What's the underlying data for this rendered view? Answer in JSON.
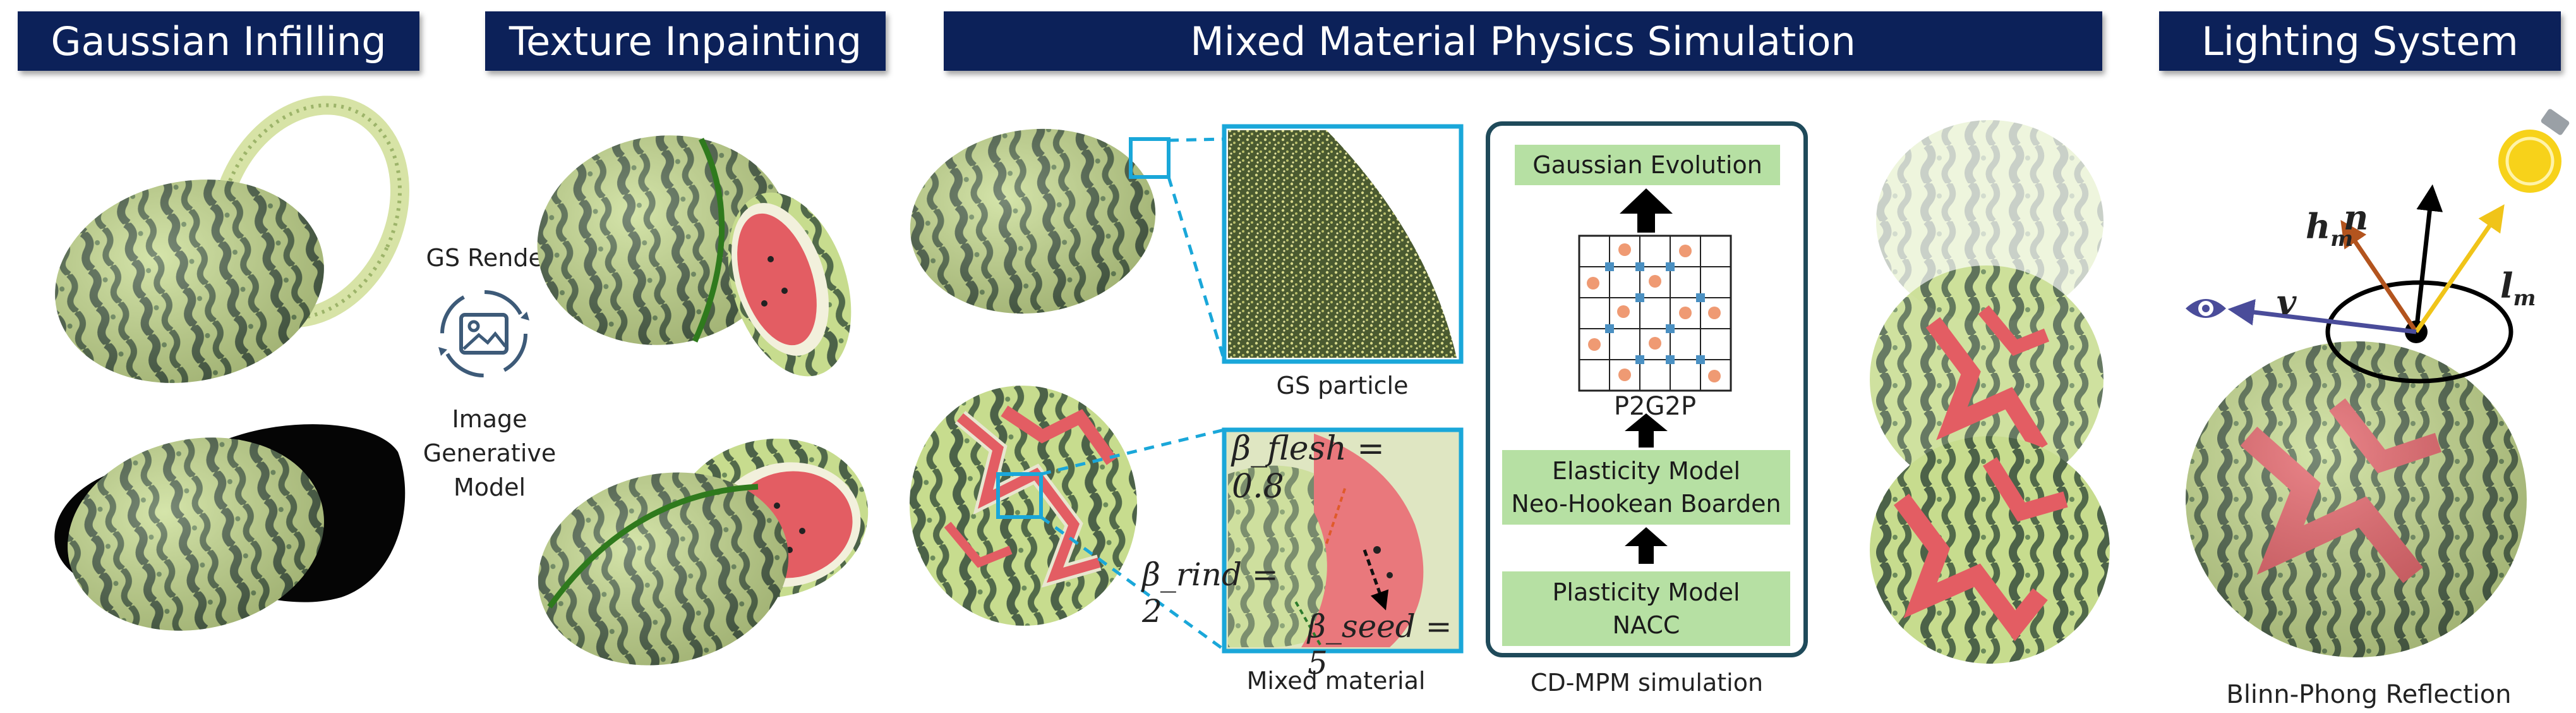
{
  "headers": {
    "gaussian_infilling": "Gaussian Infilling",
    "texture_inpainting": "Texture Inpainting",
    "physics_simulation": "Mixed Material Physics Simulation",
    "lighting_system": "Lighting System"
  },
  "labels": {
    "gs_render": "GS Render",
    "image_gen_1": "Image",
    "image_gen_2": "Generative",
    "image_gen_3": "Model",
    "gs_particle": "GS particle",
    "mixed_material": "Mixed material",
    "cdmpm": "CD-MPM simulation",
    "blinn_phong": "Blinn-Phong Reflection"
  },
  "materials": {
    "flesh": "β_flesh = 0.8",
    "rind": "β_rind = 2",
    "seed": "β_seed = 5"
  },
  "pipeline": {
    "gaussian_evolution": "Gaussian Evolution",
    "p2g2p": "P2G2P",
    "elasticity_1": "Elasticity Model",
    "elasticity_2": "Neo-Hookean Boarden",
    "plasticity_1": "Plasticity Model",
    "plasticity_2": "NACC"
  },
  "vectors": {
    "h": "h",
    "h_sub": "m",
    "n": "n",
    "l": "l",
    "l_sub": "m",
    "v": "v"
  },
  "colors": {
    "header_bg": "#0c2159",
    "box_green": "#b6e0a3",
    "cyan": "#1aa7d9",
    "watermelon_light": "#c4d98a",
    "watermelon_dark": "#4f6645",
    "flesh_red": "#e35d63"
  }
}
